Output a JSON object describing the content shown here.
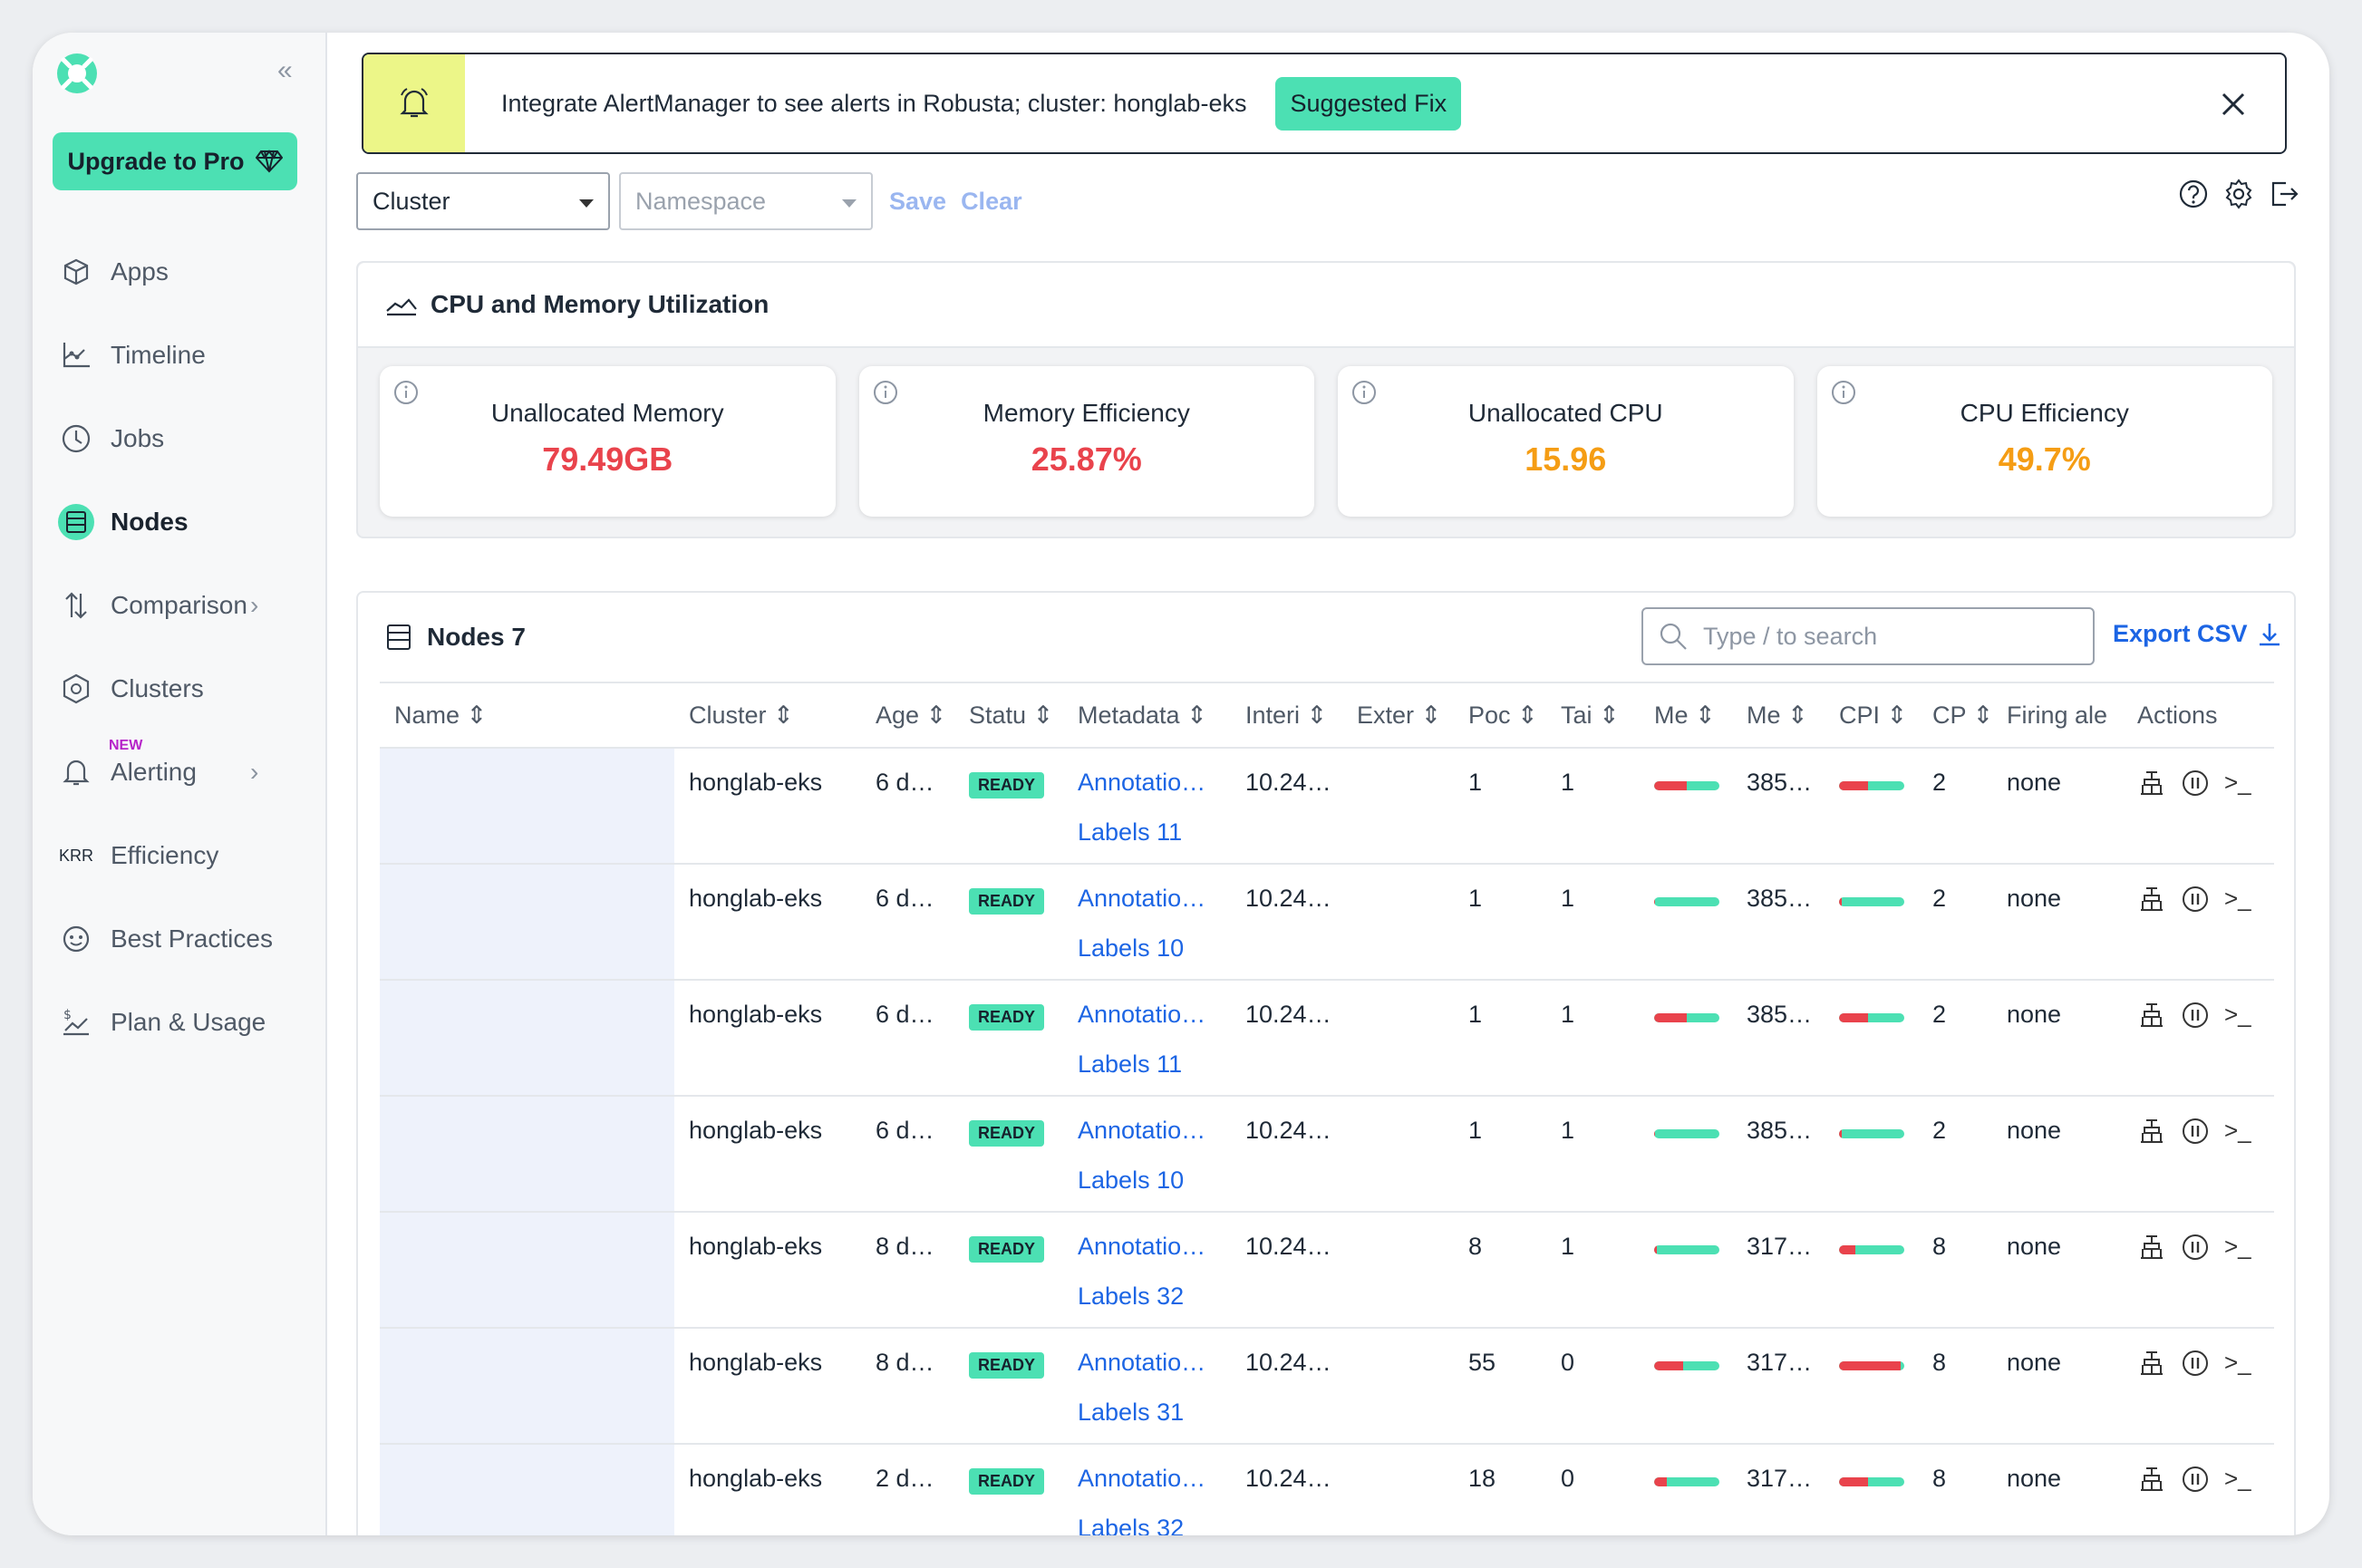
{
  "sidebar": {
    "upgrade_label": "Upgrade to Pro",
    "items": [
      {
        "label": "Apps",
        "icon": "cube-icon"
      },
      {
        "label": "Timeline",
        "icon": "timeline-icon"
      },
      {
        "label": "Jobs",
        "icon": "clock-icon"
      },
      {
        "label": "Nodes",
        "icon": "server-icon",
        "active": true
      },
      {
        "label": "Comparison",
        "icon": "compare-arrows-icon"
      },
      {
        "label": "Clusters",
        "icon": "cluster-icon"
      },
      {
        "label": "Alerting",
        "icon": "bell-icon",
        "badge": "NEW"
      },
      {
        "label": "Efficiency",
        "icon": "krr-icon",
        "prefix": "KRR"
      },
      {
        "label": "Best Practices",
        "icon": "best-practices-icon"
      },
      {
        "label": "Plan & Usage",
        "icon": "plan-usage-icon"
      }
    ]
  },
  "alert": {
    "message": "Integrate AlertManager to see alerts in Robusta; cluster: honglab-eks",
    "fix_label": "Suggested Fix"
  },
  "filters": {
    "cluster_placeholder": "Cluster",
    "namespace_placeholder": "Namespace",
    "save_label": "Save",
    "clear_label": "Clear"
  },
  "utilization": {
    "title": "CPU and Memory Utilization",
    "metrics": [
      {
        "label": "Unallocated Memory",
        "value": "79.49GB",
        "color": "#e9434c"
      },
      {
        "label": "Memory Efficiency",
        "value": "25.87%",
        "color": "#e9434c"
      },
      {
        "label": "Unallocated CPU",
        "value": "15.96",
        "color": "#f59d14"
      },
      {
        "label": "CPU Efficiency",
        "value": "49.7%",
        "color": "#f59d14"
      }
    ]
  },
  "nodes": {
    "title": "Nodes 7",
    "search_placeholder": "Type / to search",
    "export_label": "Export CSV",
    "columns": [
      "Name",
      "Cluster",
      "Age",
      "Statu",
      "Metadata",
      "Interi",
      "Exter",
      "Poc",
      "Tai",
      "Me",
      "Me",
      "CPI",
      "CP",
      "Firing ale",
      "Actions"
    ],
    "rows": [
      {
        "cluster": "honglab-eks",
        "age": "6 d…",
        "status": "READY",
        "annotations": "Annotatio…",
        "labels": "Labels 11",
        "internal": "10.24…",
        "pods": "1",
        "taints": "1",
        "mem_pct": 0.5,
        "mem": "385…",
        "cpu_pct": 0.45,
        "cpu": "2",
        "alerts": "none"
      },
      {
        "cluster": "honglab-eks",
        "age": "6 d…",
        "status": "READY",
        "annotations": "Annotatio…",
        "labels": "Labels 10",
        "internal": "10.24…",
        "pods": "1",
        "taints": "1",
        "mem_pct": 0.02,
        "mem": "385…",
        "cpu_pct": 0.04,
        "cpu": "2",
        "alerts": "none"
      },
      {
        "cluster": "honglab-eks",
        "age": "6 d…",
        "status": "READY",
        "annotations": "Annotatio…",
        "labels": "Labels 11",
        "internal": "10.24…",
        "pods": "1",
        "taints": "1",
        "mem_pct": 0.5,
        "mem": "385…",
        "cpu_pct": 0.45,
        "cpu": "2",
        "alerts": "none"
      },
      {
        "cluster": "honglab-eks",
        "age": "6 d…",
        "status": "READY",
        "annotations": "Annotatio…",
        "labels": "Labels 10",
        "internal": "10.24…",
        "pods": "1",
        "taints": "1",
        "mem_pct": 0.02,
        "mem": "385…",
        "cpu_pct": 0.04,
        "cpu": "2",
        "alerts": "none"
      },
      {
        "cluster": "honglab-eks",
        "age": "8 d…",
        "status": "READY",
        "annotations": "Annotatio…",
        "labels": "Labels 32",
        "internal": "10.24…",
        "pods": "8",
        "taints": "1",
        "mem_pct": 0.04,
        "mem": "317…",
        "cpu_pct": 0.25,
        "cpu": "8",
        "alerts": "none"
      },
      {
        "cluster": "honglab-eks",
        "age": "8 d…",
        "status": "READY",
        "annotations": "Annotatio…",
        "labels": "Labels 31",
        "internal": "10.24…",
        "pods": "55",
        "taints": "0",
        "mem_pct": 0.45,
        "mem": "317…",
        "cpu_pct": 0.95,
        "cpu": "8",
        "alerts": "none"
      },
      {
        "cluster": "honglab-eks",
        "age": "2 d…",
        "status": "READY",
        "annotations": "Annotatio…",
        "labels": "Labels 32",
        "internal": "10.24…",
        "pods": "18",
        "taints": "0",
        "mem_pct": 0.2,
        "mem": "317…",
        "cpu_pct": 0.45,
        "cpu": "8",
        "alerts": "none"
      }
    ]
  }
}
